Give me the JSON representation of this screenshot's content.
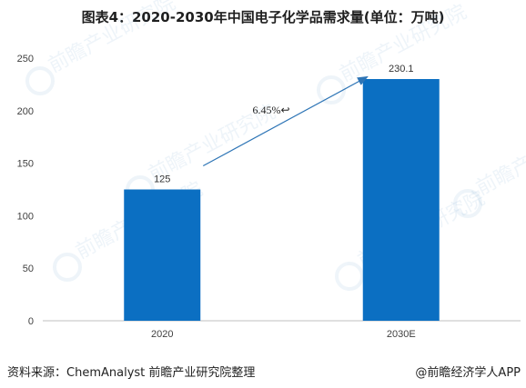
{
  "title": "图表4：2020-2030年中国电子化学品需求量(单位：万吨)",
  "source": "资料来源：ChemAnalyst 前瞻产业研究院整理",
  "credit": "@前瞻经济学人APP",
  "watermark": "前瞻产业研究院",
  "chart_data": {
    "type": "bar",
    "title": "图表4：2020-2030年中国电子化学品需求量(单位：万吨)",
    "categories": [
      "2020",
      "2030E"
    ],
    "values": [
      125,
      230.1
    ],
    "value_labels": [
      "125",
      "230.1"
    ],
    "y_ticks": [
      "0",
      "50",
      "100",
      "150",
      "200",
      "250"
    ],
    "ylim": [
      0,
      250
    ],
    "bar_color": "#0b6fc2",
    "grid": false,
    "legend": "none",
    "annotation": {
      "text": "6.45%↩",
      "meaning": "growth arrow from 2020 bar to 2030E bar",
      "arrow_color": "#2e75b6"
    }
  }
}
